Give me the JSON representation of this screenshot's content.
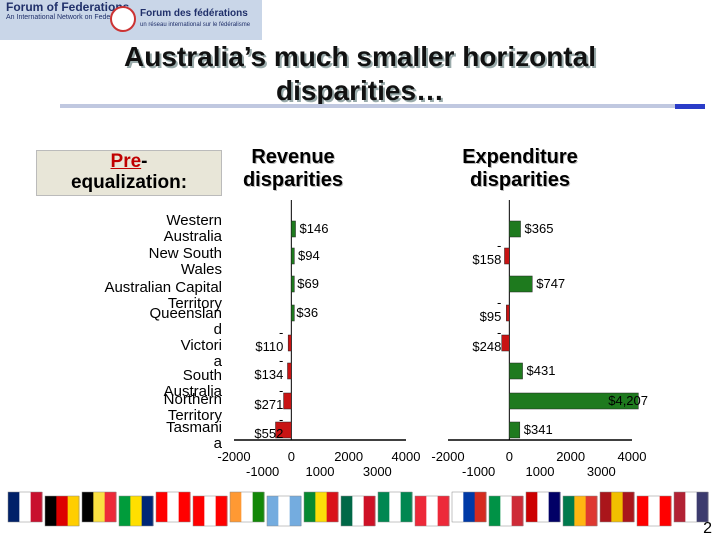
{
  "logo": {
    "line1": "Forum of Federations",
    "line2": "An International Network on Federalism",
    "line3": "Forum des fédérations",
    "line4": "un réseau international sur le fédéralisme"
  },
  "title": "Australia’s much smaller horizontal disparities…",
  "pre_label": {
    "red": "Pre",
    "rest": "-",
    "line2": "equalization:"
  },
  "headers": {
    "revenue": "Revenue\ndisparities",
    "expenditure": "Expenditure\ndisparities"
  },
  "categories": [
    "Western\nAustralia",
    "New South\nWales",
    "Australian Capital\nTerritory",
    "Queenslan\nd",
    "Victori\na",
    "South\nAustralia",
    "Northern\nTerritory",
    "Tasmani\na"
  ],
  "chart_data": [
    {
      "type": "bar",
      "orientation": "horizontal",
      "title": "Revenue disparities",
      "categories": [
        "Western Australia",
        "New South Wales",
        "Australian Capital Territory",
        "Queensland",
        "Victoria",
        "South Australia",
        "Northern Territory",
        "Tasmania"
      ],
      "values": [
        146,
        94,
        69,
        36,
        -110,
        -134,
        -271,
        -552
      ],
      "data_labels": [
        "$146",
        "$94",
        "$69",
        "$36",
        "-\n$110",
        "-\n$134",
        "-\n$271",
        "-\n$552"
      ],
      "xlim": [
        -2000,
        4000
      ],
      "xticks_upper": [
        "-2000",
        "0",
        "2000",
        "4000"
      ],
      "xticks_lower": [
        "-1000",
        "1000",
        "3000"
      ],
      "colors": {
        "positive": "#1e7a1e",
        "negative": "#c81414"
      }
    },
    {
      "type": "bar",
      "orientation": "horizontal",
      "title": "Expenditure disparities",
      "categories": [
        "Western Australia",
        "New South Wales",
        "Australian Capital Territory",
        "Queensland",
        "Victoria",
        "South Australia",
        "Northern Territory",
        "Tasmania"
      ],
      "values": [
        365,
        -158,
        747,
        -95,
        -248,
        431,
        4207,
        341
      ],
      "data_labels": [
        "$365",
        "-\n$158",
        "$747",
        "-\n$95",
        "-\n$248",
        "$431",
        "$4,207",
        "$341"
      ],
      "xlim": [
        -2000,
        4000
      ],
      "xticks_upper": [
        "-2000",
        "0",
        "2000",
        "4000"
      ],
      "xticks_lower": [
        "-1000",
        "1000",
        "3000"
      ],
      "colors": {
        "positive": "#1e7a1e",
        "negative": "#c81414"
      }
    }
  ],
  "flags": [
    "australia-flag",
    "germany-flag",
    "belgium-flag",
    "brazil-flag",
    "canada-flag",
    "switzerland-flag",
    "india-flag",
    "argentina-flag",
    "ethiopia-flag",
    "mexico-flag",
    "nigeria-flag",
    "austria-flag",
    "russia-flag",
    "italy-flag",
    "malaysia-flag",
    "south-africa-flag",
    "spain-flag",
    "switzerland-flag-2",
    "usa-flag"
  ],
  "page_number": "2"
}
